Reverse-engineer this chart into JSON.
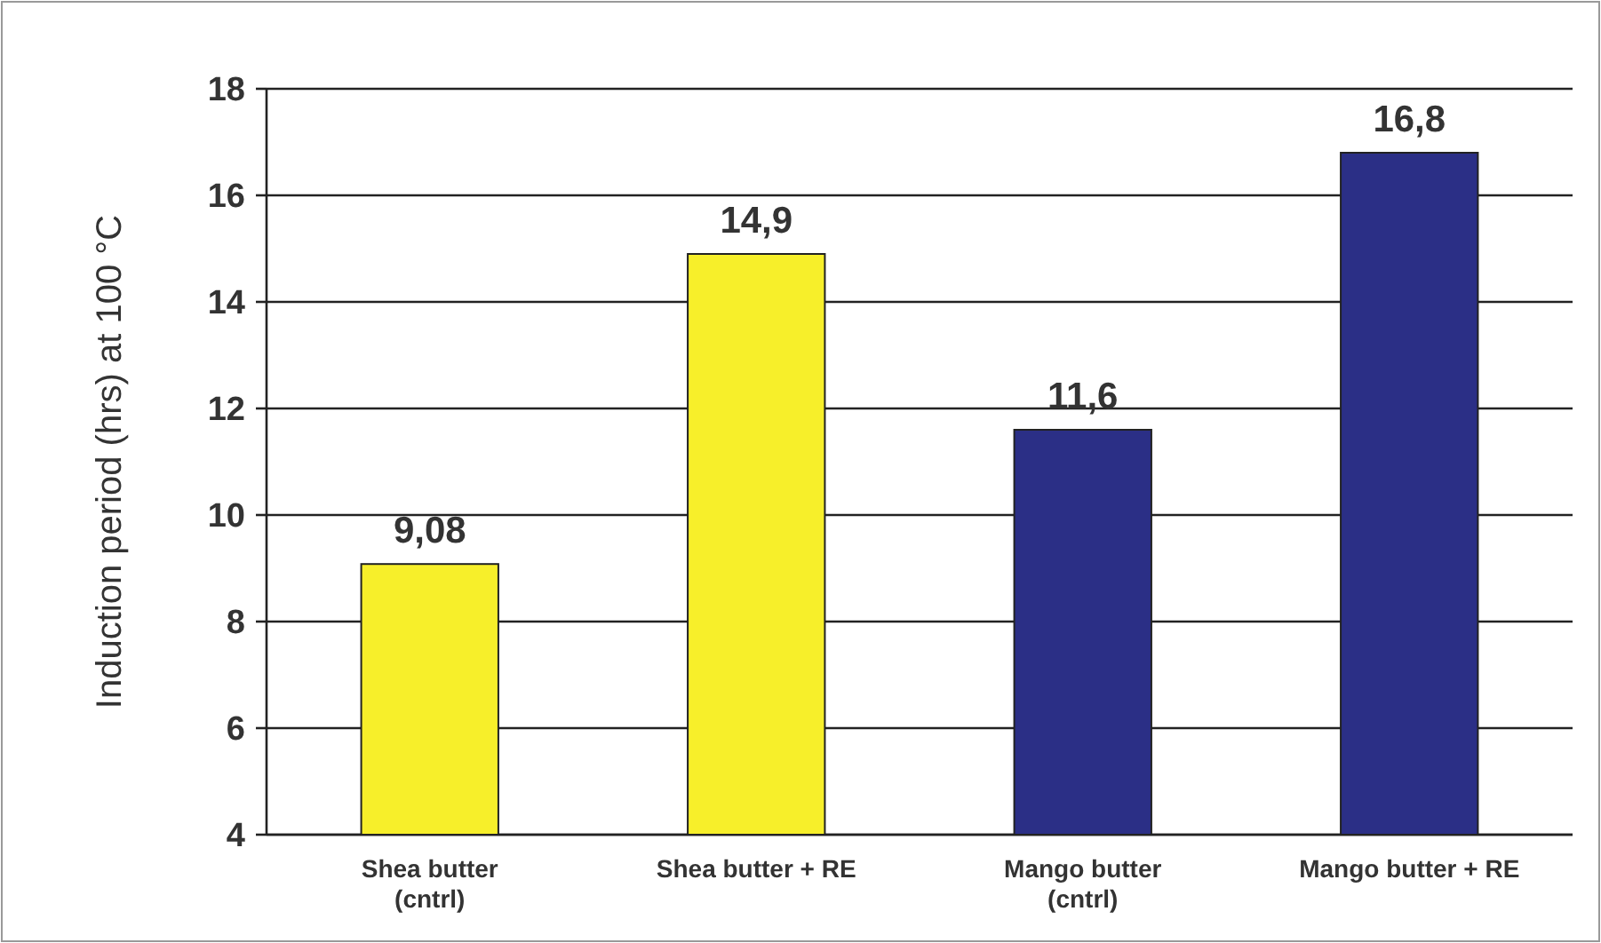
{
  "chart_data": {
    "type": "bar",
    "ylabel": "Induction period (hrs) at 100 °C",
    "categories": [
      "Shea butter\n(cntrl)",
      "Shea butter + RE",
      "Mango butter\n(cntrl)",
      "Mango butter + RE"
    ],
    "values": [
      9.08,
      14.9,
      11.6,
      16.8
    ],
    "colors": [
      "#f7ef2a",
      "#f7ef2a",
      "#2b2f86",
      "#2b2f86"
    ],
    "value_labels": [
      "9,08",
      "14,9",
      "11,6",
      "16,8"
    ],
    "ylim": [
      4,
      18
    ],
    "yticks": [
      4,
      6,
      8,
      10,
      12,
      14,
      16,
      18
    ],
    "grid": "y"
  }
}
